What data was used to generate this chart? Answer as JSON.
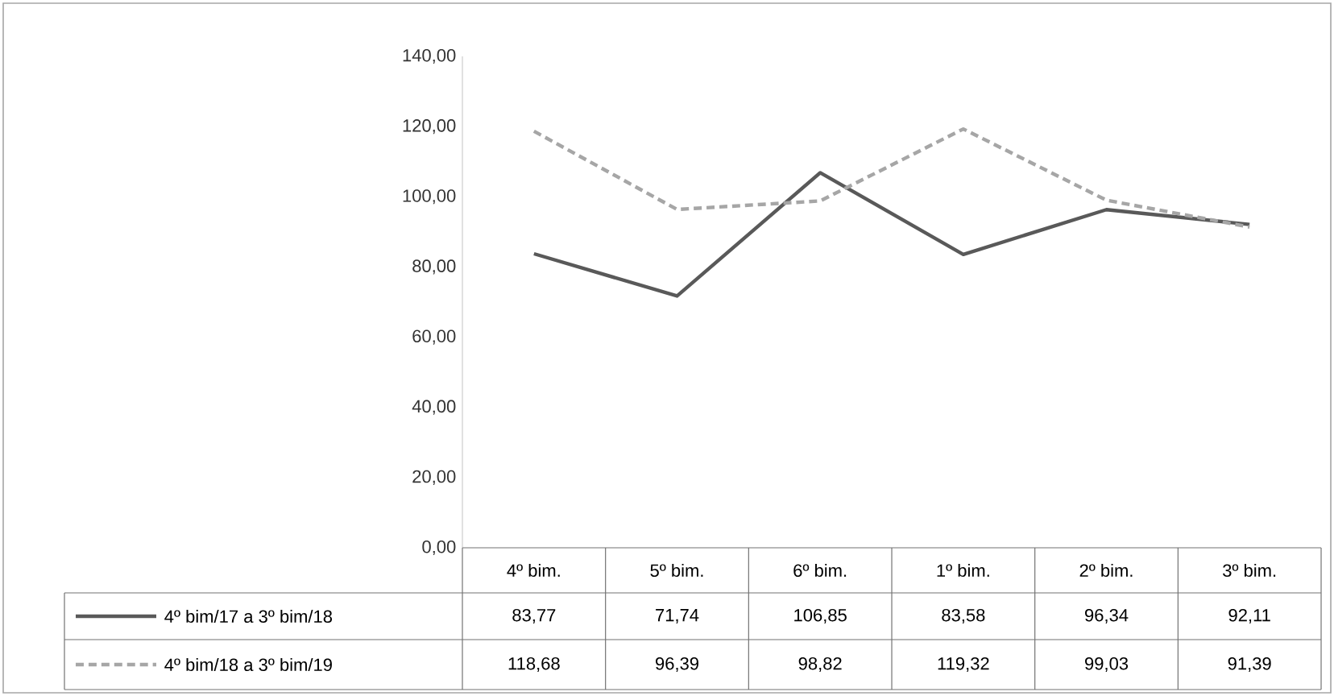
{
  "chart_data": {
    "type": "line",
    "categories": [
      "4º bim.",
      "5º bim.",
      "6º bim.",
      "1º bim.",
      "2º bim.",
      "3º bim."
    ],
    "series": [
      {
        "name": "4º bim/17 a 3º bim/18",
        "color": "#595959",
        "line_style": "solid",
        "values": [
          83.77,
          71.74,
          106.85,
          83.58,
          96.34,
          92.11
        ],
        "value_labels": [
          "83,77",
          "71,74",
          "106,85",
          "83,58",
          "96,34",
          "92,11"
        ]
      },
      {
        "name": "4º bim/18 a 3º bim/19",
        "color": "#a6a6a6",
        "line_style": "dashed",
        "values": [
          118.68,
          96.39,
          98.82,
          119.32,
          99.03,
          91.39
        ],
        "value_labels": [
          "118,68",
          "96,39",
          "98,82",
          "119,32",
          "99,03",
          "91,39"
        ]
      }
    ],
    "ylim": [
      0,
      140
    ],
    "yticks": [
      {
        "value": 0,
        "label": "0,00"
      },
      {
        "value": 20,
        "label": "20,00"
      },
      {
        "value": 40,
        "label": "40,00"
      },
      {
        "value": 60,
        "label": "60,00"
      },
      {
        "value": 80,
        "label": "80,00"
      },
      {
        "value": 100,
        "label": "100,00"
      },
      {
        "value": 120,
        "label": "120,00"
      },
      {
        "value": 140,
        "label": "140,00"
      }
    ],
    "legend": "bottom"
  }
}
